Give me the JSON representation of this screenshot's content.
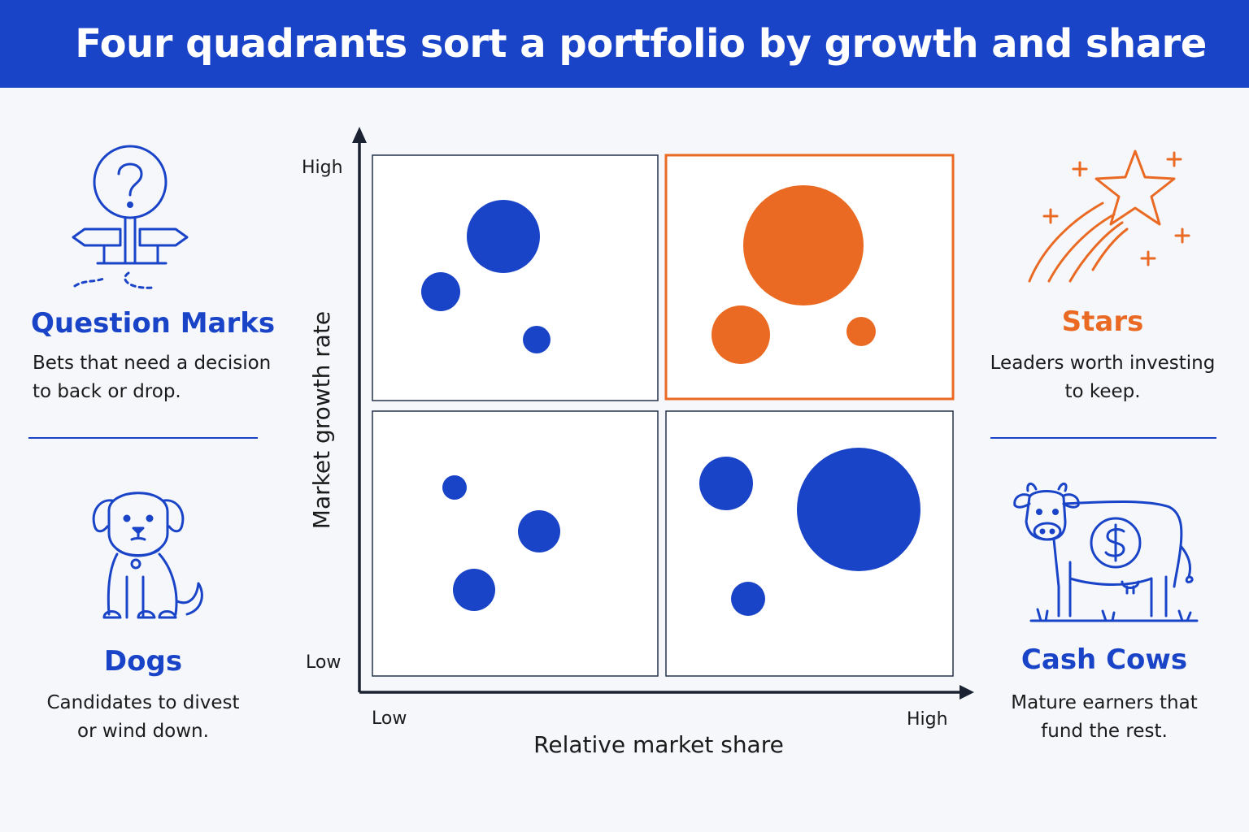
{
  "header": {
    "title": "Four quadrants sort a portfolio by growth and share"
  },
  "axes": {
    "y_label": "Market growth rate",
    "x_label": "Relative market share",
    "y_high": "High",
    "y_low": "Low",
    "x_low": "Low",
    "x_high": "High"
  },
  "quadrants": {
    "question_marks": {
      "title": "Question Marks",
      "desc_line1": "Bets that need a decision",
      "desc_line2": "to back or drop.",
      "icon": "signpost-question-icon"
    },
    "stars": {
      "title": "Stars",
      "desc_line1": "Leaders worth investing",
      "desc_line2": "to keep.",
      "icon": "shooting-star-icon"
    },
    "dogs": {
      "title": "Dogs",
      "desc_line1": "Candidates to divest",
      "desc_line2": "or wind down.",
      "icon": "dog-icon"
    },
    "cash_cows": {
      "title": "Cash Cows",
      "desc_line1": "Mature earners that",
      "desc_line2": "fund the rest.",
      "icon": "cow-dollar-icon"
    }
  },
  "colors": {
    "blue": "#1a44c8",
    "orange": "#ea6a23",
    "outline": "#24324a"
  },
  "highlighted_quadrant": "stars"
}
